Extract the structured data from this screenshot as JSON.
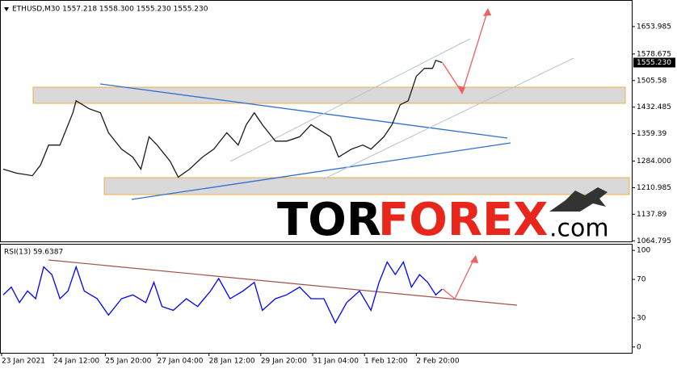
{
  "chart_data": [
    {
      "type": "line",
      "title": "ETHUSD,M30  1557.218 1558.300 1555.230 1555.230",
      "color": "#1a1a1a",
      "x": [
        2,
        10,
        20,
        25,
        30,
        37,
        45,
        47,
        55,
        62,
        67,
        75,
        82,
        87,
        92,
        97,
        105,
        110,
        117,
        125,
        132,
        140,
        147,
        152,
        157,
        162,
        170,
        177,
        185,
        192,
        200,
        204,
        209,
        217,
        224,
        229,
        237,
        242,
        247,
        252,
        257,
        262,
        267,
        269,
        273
      ],
      "values": [
        1262,
        1251,
        1244,
        1273,
        1328,
        1328,
        1417,
        1450,
        1428,
        1417,
        1362,
        1317,
        1295,
        1262,
        1351,
        1328,
        1284,
        1240,
        1262,
        1295,
        1317,
        1362,
        1328,
        1384,
        1417,
        1384,
        1339,
        1339,
        1351,
        1384,
        1362,
        1351,
        1295,
        1317,
        1328,
        1317,
        1351,
        1384,
        1439,
        1450,
        1517,
        1539,
        1539,
        1561,
        1555
      ],
      "xlim": [
        0,
        390
      ],
      "ylim": [
        1061,
        1716
      ],
      "yticks": [
        1653.985,
        1578.675,
        1505.58,
        1432.485,
        1359.39,
        {
          "value": 1284,
          "label": "1284.000"
        },
        1210.985,
        1137.89,
        1064.795
      ],
      "current_price_label": "1555.230",
      "watermark": [
        "TOR",
        "FOREX",
        ".com"
      ]
    },
    {
      "type": "line",
      "title": "RSI(13) 59.6387",
      "color": "#0000ff",
      "x": [
        2,
        7,
        12,
        17,
        22,
        27,
        32,
        37,
        42,
        47,
        52,
        60,
        67,
        75,
        82,
        90,
        95,
        100,
        107,
        115,
        122,
        130,
        135,
        142,
        150,
        157,
        162,
        170,
        177,
        185,
        192,
        200,
        207,
        214,
        222,
        229,
        234,
        239,
        244,
        249,
        254,
        259,
        264,
        269,
        273
      ],
      "values": [
        54,
        62,
        46,
        58,
        50,
        83,
        75,
        50,
        58,
        83,
        58,
        50,
        33,
        50,
        54,
        46,
        67,
        42,
        38,
        50,
        42,
        58,
        71,
        50,
        58,
        67,
        38,
        50,
        54,
        62,
        50,
        50,
        25,
        46,
        58,
        38,
        67,
        88,
        75,
        88,
        62,
        75,
        67,
        54,
        60
      ],
      "xlim": [
        0,
        390
      ],
      "ylim": [
        -6,
        106
      ],
      "yticks": [
        0,
        30,
        70,
        100
      ],
      "xticks": [
        {
          "value": 1,
          "label": "23 Jan 2021"
        },
        {
          "value": 33,
          "label": "24 Jan 12:00"
        },
        {
          "value": 65,
          "label": "25 Jan 20:00"
        },
        {
          "value": 97,
          "label": "27 Jan 04:00"
        },
        {
          "value": 129,
          "label": "28 Jan 12:00"
        },
        {
          "value": 161,
          "label": "29 Jan 20:00"
        },
        {
          "value": 193,
          "label": "31 Jan 04:00"
        },
        {
          "value": 225,
          "label": "1 Feb 12:00"
        },
        {
          "value": 257,
          "label": "2 Feb 20:00"
        }
      ]
    }
  ]
}
